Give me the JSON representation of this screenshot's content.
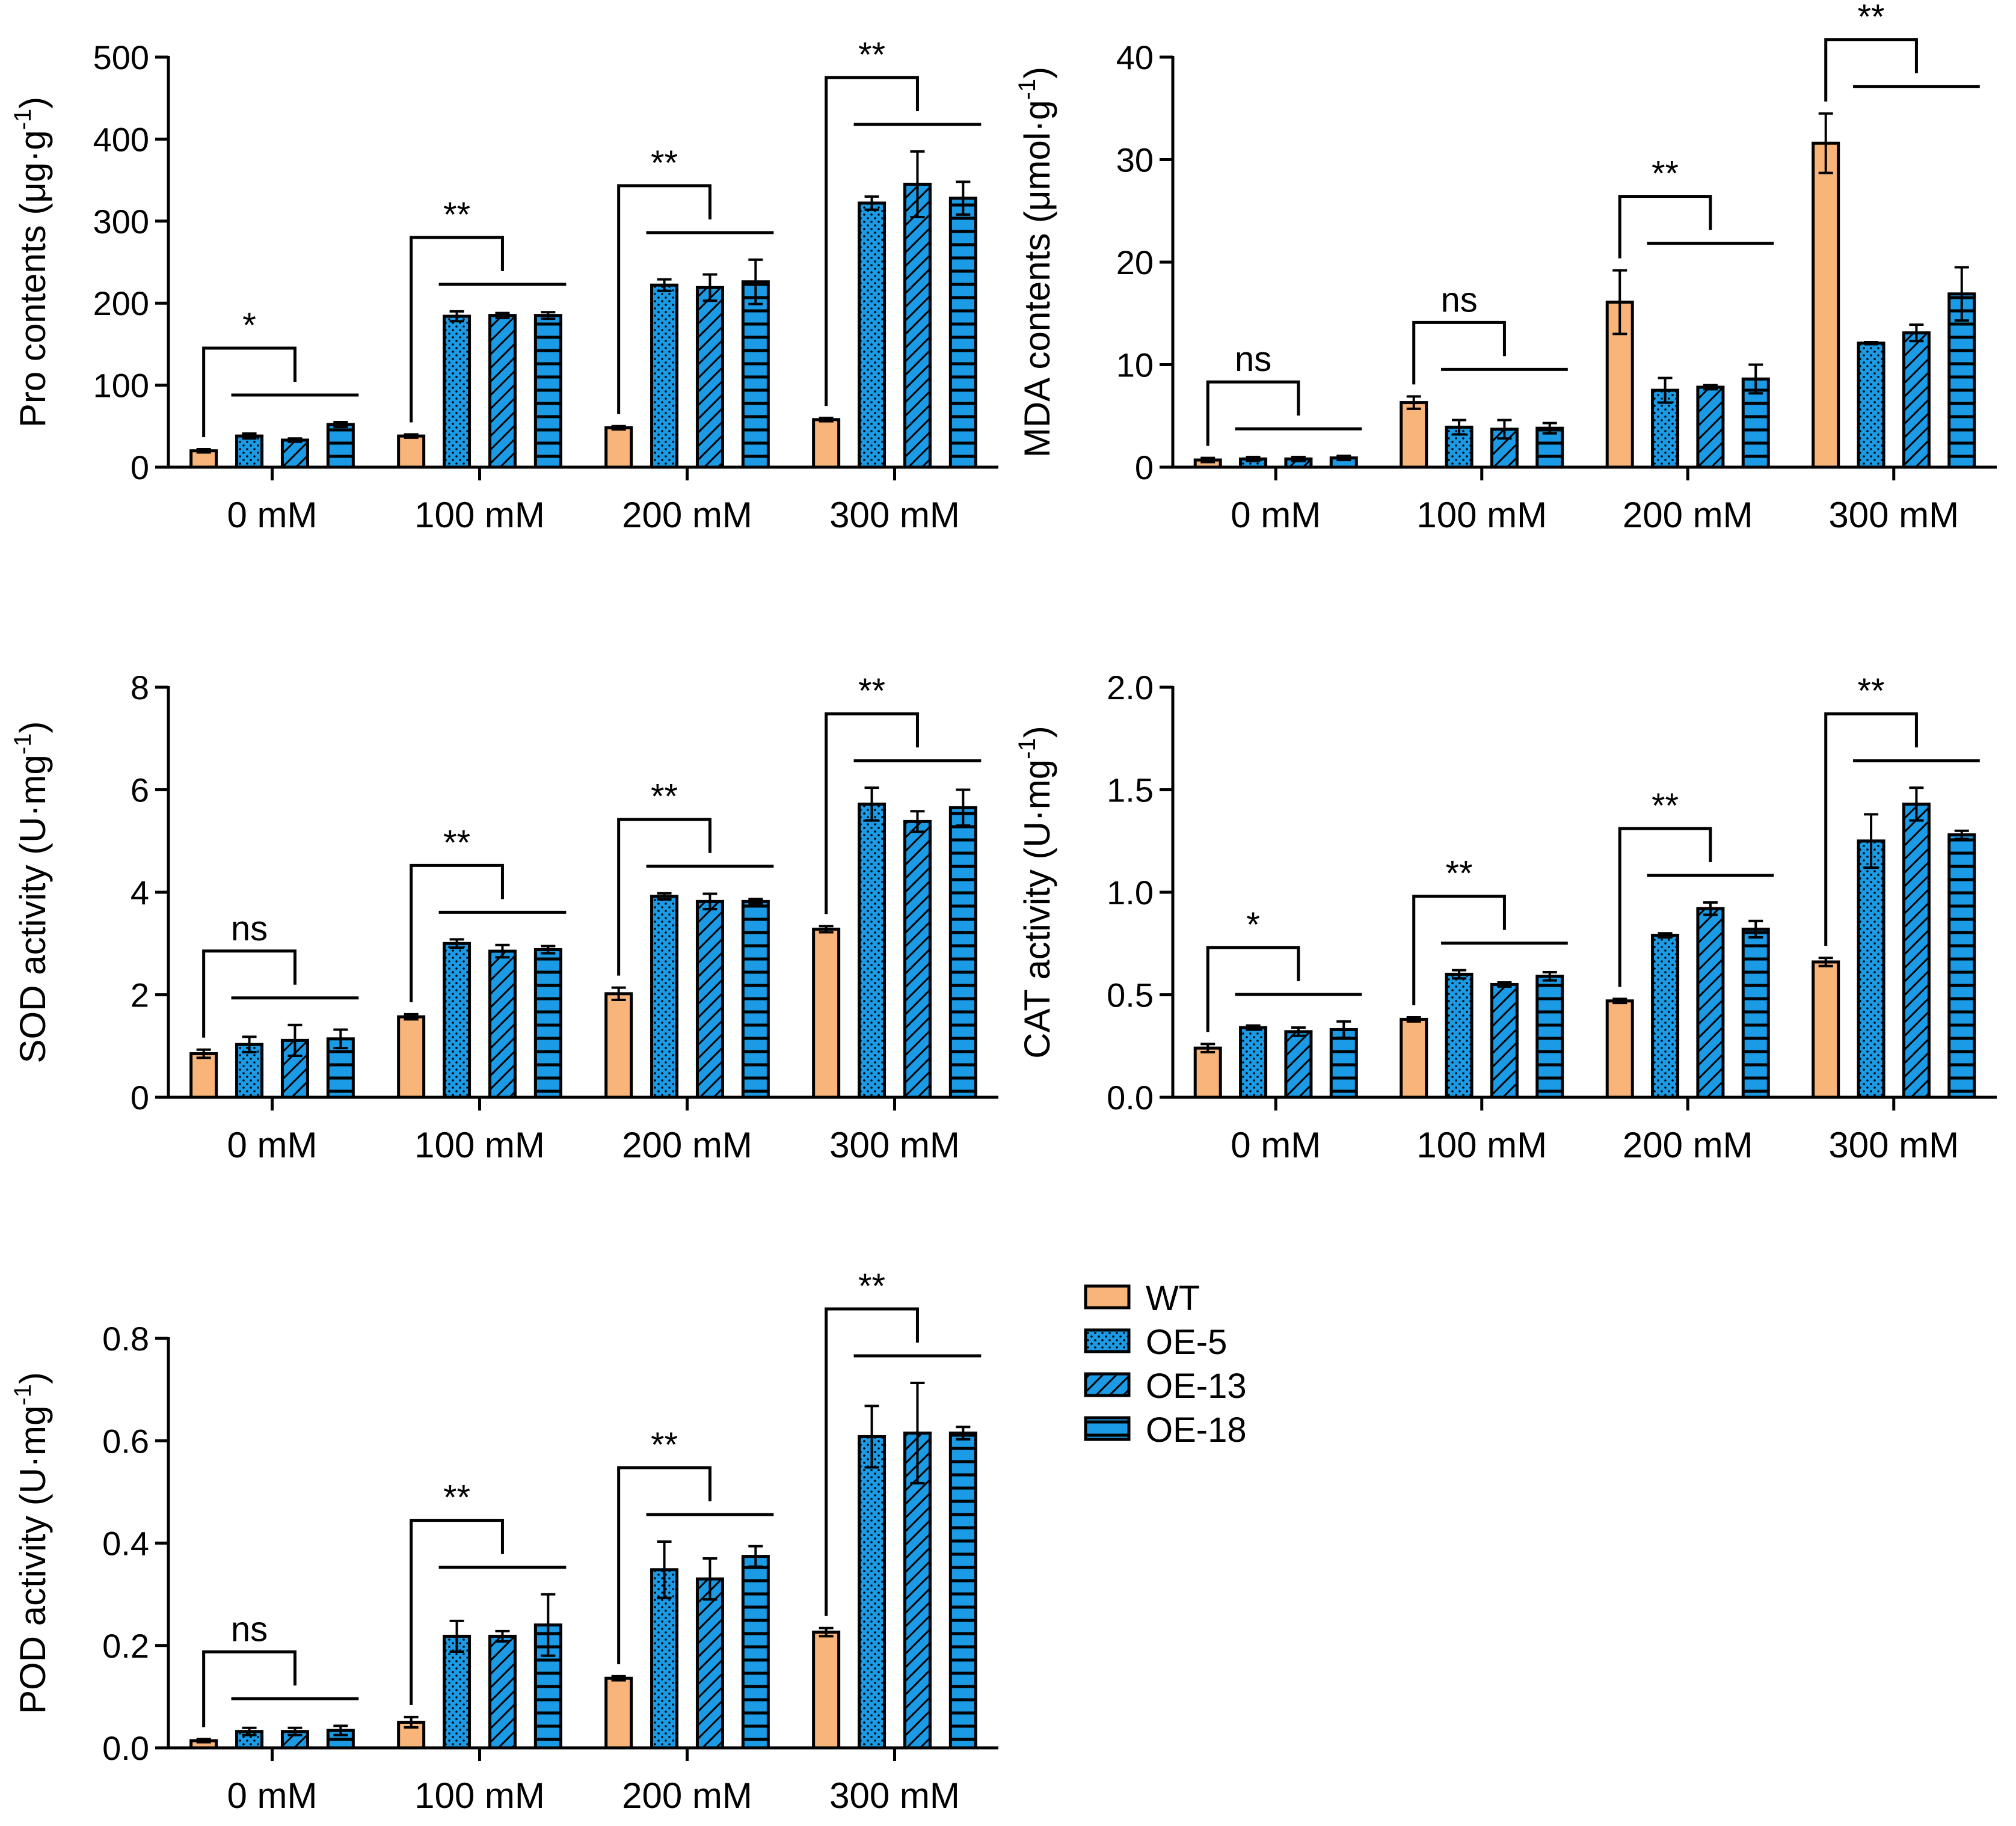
{
  "legend": [
    {
      "name": "WT",
      "color": "#F9B47A",
      "pattern": "solid"
    },
    {
      "name": "OE-5",
      "color": "#1B9BE5",
      "pattern": "dots"
    },
    {
      "name": "OE-13",
      "color": "#1B9BE5",
      "pattern": "diagonal"
    },
    {
      "name": "OE-18",
      "color": "#1B9BE5",
      "pattern": "horizontal"
    }
  ],
  "chart_data": [
    {
      "type": "bar",
      "ylabel_main": "Pro contents (μg·g",
      "ylabel_sup": "-1",
      "ylabel_tail": ")",
      "ylim": [
        0,
        500
      ],
      "yticks": [
        "0",
        "100",
        "200",
        "300",
        "400",
        "500"
      ],
      "ytick_values": [
        0,
        100,
        200,
        300,
        400,
        500
      ],
      "categories": [
        "0 mM",
        "100 mM",
        "200 mM",
        "300 mM"
      ],
      "series": [
        {
          "name": "WT",
          "values": [
            20,
            38,
            48,
            58
          ],
          "errors": [
            2,
            2,
            2,
            2
          ]
        },
        {
          "name": "OE-5",
          "values": [
            38,
            184,
            222,
            322
          ],
          "errors": [
            3,
            6,
            7,
            8
          ]
        },
        {
          "name": "OE-13",
          "values": [
            33,
            185,
            219,
            345
          ],
          "errors": [
            2,
            3,
            16,
            40
          ]
        },
        {
          "name": "OE-18",
          "values": [
            52,
            185,
            226,
            328
          ],
          "errors": [
            3,
            4,
            27,
            20
          ]
        }
      ],
      "significance": [
        "*",
        "**",
        "**",
        "**"
      ]
    },
    {
      "type": "bar",
      "ylabel_main": "MDA contents (μmol·g",
      "ylabel_sup": "-1",
      "ylabel_tail": ")",
      "ylim": [
        0,
        40
      ],
      "yticks": [
        "0",
        "10",
        "20",
        "30",
        "40"
      ],
      "ytick_values": [
        0,
        10,
        20,
        30,
        40
      ],
      "categories": [
        "0 mM",
        "100 mM",
        "200 mM",
        "300 mM"
      ],
      "series": [
        {
          "name": "WT",
          "values": [
            0.7,
            6.3,
            16.1,
            31.6
          ],
          "errors": [
            0.2,
            0.6,
            3.1,
            2.9
          ]
        },
        {
          "name": "OE-5",
          "values": [
            0.8,
            3.9,
            7.5,
            12.1
          ],
          "errors": [
            0.2,
            0.7,
            1.2,
            0.1
          ]
        },
        {
          "name": "OE-13",
          "values": [
            0.8,
            3.7,
            7.8,
            13.1
          ],
          "errors": [
            0.2,
            0.9,
            0.2,
            0.8
          ]
        },
        {
          "name": "OE-18",
          "values": [
            0.9,
            3.8,
            8.6,
            16.9
          ],
          "errors": [
            0.2,
            0.5,
            1.4,
            2.6
          ]
        }
      ],
      "significance": [
        "ns",
        "ns",
        "**",
        "**"
      ]
    },
    {
      "type": "bar",
      "ylabel_main": "SOD activity (U·mg",
      "ylabel_sup": "-1",
      "ylabel_tail": ")",
      "ylim": [
        0,
        8
      ],
      "yticks": [
        "0",
        "2",
        "4",
        "6",
        "8"
      ],
      "ytick_values": [
        0,
        2,
        4,
        6,
        8
      ],
      "categories": [
        "0 mM",
        "100 mM",
        "200 mM",
        "300 mM"
      ],
      "series": [
        {
          "name": "WT",
          "values": [
            0.85,
            1.57,
            2.02,
            3.28
          ],
          "errors": [
            0.08,
            0.05,
            0.12,
            0.06
          ]
        },
        {
          "name": "OE-5",
          "values": [
            1.03,
            3.0,
            3.92,
            5.72
          ],
          "errors": [
            0.15,
            0.08,
            0.06,
            0.32
          ]
        },
        {
          "name": "OE-13",
          "values": [
            1.11,
            2.85,
            3.82,
            5.38
          ],
          "errors": [
            0.3,
            0.12,
            0.15,
            0.2
          ]
        },
        {
          "name": "OE-18",
          "values": [
            1.14,
            2.88,
            3.82,
            5.65
          ],
          "errors": [
            0.18,
            0.07,
            0.05,
            0.35
          ]
        }
      ],
      "significance": [
        "ns",
        "**",
        "**",
        "**"
      ]
    },
    {
      "type": "bar",
      "ylabel_main": "CAT activity (U·mg",
      "ylabel_sup": "-1",
      "ylabel_tail": ")",
      "ylim": [
        0,
        2.0
      ],
      "yticks": [
        "0.0",
        "0.5",
        "1.0",
        "1.5",
        "2.0"
      ],
      "ytick_values": [
        0,
        0.5,
        1.0,
        1.5,
        2.0
      ],
      "categories": [
        "0 mM",
        "100 mM",
        "200 mM",
        "300 mM"
      ],
      "series": [
        {
          "name": "WT",
          "values": [
            0.24,
            0.38,
            0.47,
            0.66
          ],
          "errors": [
            0.02,
            0.01,
            0.01,
            0.02
          ]
        },
        {
          "name": "OE-5",
          "values": [
            0.34,
            0.6,
            0.79,
            1.25
          ],
          "errors": [
            0.01,
            0.02,
            0.01,
            0.13
          ]
        },
        {
          "name": "OE-13",
          "values": [
            0.32,
            0.55,
            0.92,
            1.43
          ],
          "errors": [
            0.02,
            0.01,
            0.03,
            0.08
          ]
        },
        {
          "name": "OE-18",
          "values": [
            0.33,
            0.59,
            0.82,
            1.28
          ],
          "errors": [
            0.04,
            0.02,
            0.04,
            0.02
          ]
        }
      ],
      "significance": [
        "*",
        "**",
        "**",
        "**"
      ]
    },
    {
      "type": "bar",
      "ylabel_main": "POD activity (U·mg",
      "ylabel_sup": "-1",
      "ylabel_tail": ")",
      "ylim": [
        0,
        0.8
      ],
      "yticks": [
        "0.0",
        "0.2",
        "0.4",
        "0.6",
        "0.8"
      ],
      "ytick_values": [
        0,
        0.2,
        0.4,
        0.6,
        0.8
      ],
      "categories": [
        "0 mM",
        "100 mM",
        "200 mM",
        "300 mM"
      ],
      "series": [
        {
          "name": "WT",
          "values": [
            0.014,
            0.05,
            0.136,
            0.226
          ],
          "errors": [
            0.003,
            0.01,
            0.004,
            0.008
          ]
        },
        {
          "name": "OE-5",
          "values": [
            0.032,
            0.218,
            0.348,
            0.608
          ],
          "errors": [
            0.007,
            0.03,
            0.055,
            0.06
          ]
        },
        {
          "name": "OE-13",
          "values": [
            0.032,
            0.218,
            0.33,
            0.615
          ],
          "errors": [
            0.007,
            0.01,
            0.04,
            0.098
          ]
        },
        {
          "name": "OE-18",
          "values": [
            0.034,
            0.24,
            0.374,
            0.615
          ],
          "errors": [
            0.009,
            0.06,
            0.02,
            0.012
          ]
        }
      ],
      "significance": [
        "ns",
        "**",
        "**",
        "**"
      ]
    }
  ]
}
